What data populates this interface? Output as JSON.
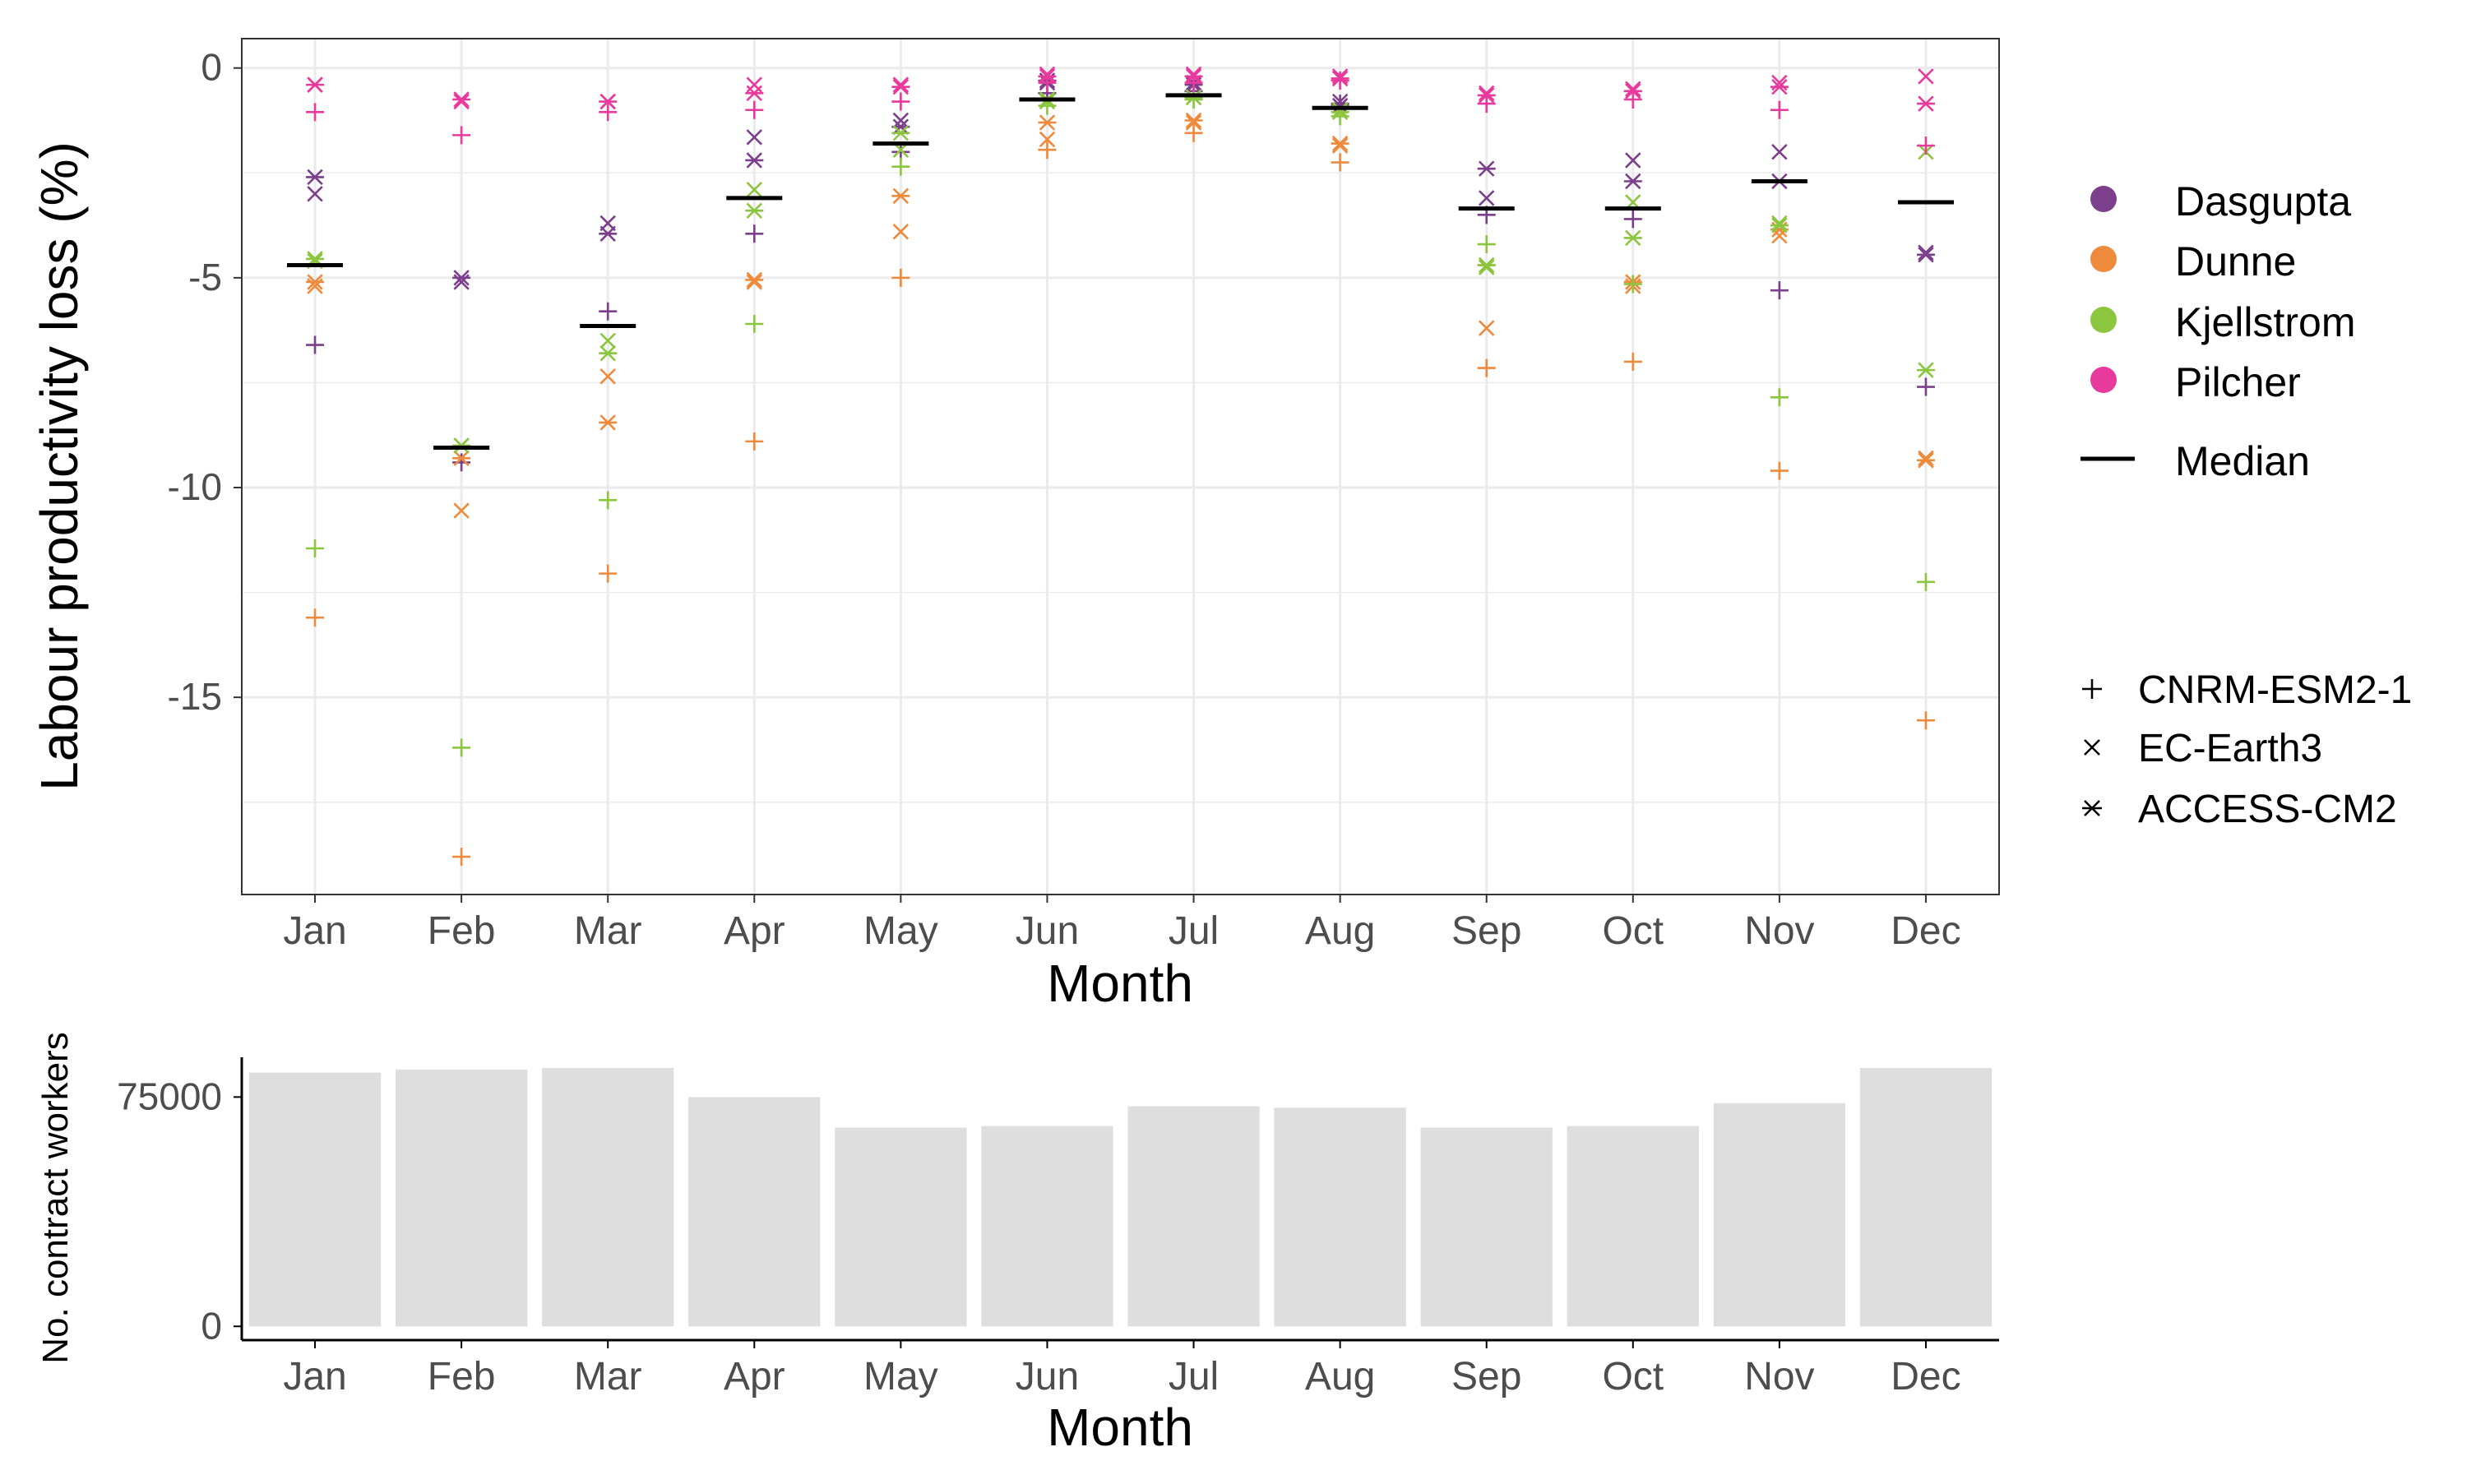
{
  "colors": {
    "Dasgupta": "#7b3f8c",
    "Dunne": "#ee8a3c",
    "Kjellstrom": "#8cc63f",
    "Pilcher": "#e8399c",
    "median": "#000000",
    "bar": "#dedede",
    "grid": "#ebebeb"
  },
  "legend_methods": [
    "Dasgupta",
    "Dunne",
    "Kjellstrom",
    "Pilcher"
  ],
  "legend_median_label": "Median",
  "legend_models": [
    {
      "name": "CNRM-ESM2-1",
      "symbol": "+"
    },
    {
      "name": "EC-Earth3",
      "symbol": "×"
    },
    {
      "name": "ACCESS-CM2",
      "symbol": "✳"
    }
  ],
  "chart_data": [
    {
      "type": "scatter",
      "title": "",
      "xlabel": "Month",
      "ylabel": "Labour productivity loss (%)",
      "categories": [
        "Jan",
        "Feb",
        "Mar",
        "Apr",
        "May",
        "Jun",
        "Jul",
        "Aug",
        "Sep",
        "Oct",
        "Nov",
        "Dec"
      ],
      "ylim": [
        -19.7,
        0.7
      ],
      "yticks": [
        0,
        -5,
        -10,
        -15
      ],
      "ytick_labels": [
        "0",
        "-5",
        "-10",
        "-15"
      ],
      "grid": true,
      "models": [
        "CNRM-ESM2-1",
        "EC-Earth3",
        "ACCESS-CM2"
      ],
      "medians": [
        -4.7,
        -9.05,
        -6.15,
        -3.1,
        -1.8,
        -0.75,
        -0.65,
        -0.95,
        -3.35,
        -3.35,
        -2.7,
        -3.2
      ],
      "series": [
        {
          "name": "Dasgupta",
          "values": {
            "CNRM-ESM2-1": [
              -6.6,
              -9.4,
              -5.8,
              -3.95,
              -2.0,
              -0.6,
              -0.55,
              -0.85,
              -3.5,
              -3.6,
              -5.3,
              -7.6
            ],
            "EC-Earth3": [
              -3.0,
              -5.1,
              -3.7,
              -1.65,
              -1.25,
              -0.35,
              -0.35,
              -0.8,
              -3.1,
              -2.2,
              -2.0,
              -4.4
            ],
            "ACCESS-CM2": [
              -2.6,
              -5.0,
              -3.95,
              -2.2,
              -1.4,
              -0.3,
              -0.4,
              -0.9,
              -2.4,
              -2.7,
              -2.7,
              -4.45
            ]
          }
        },
        {
          "name": "Dunne",
          "values": {
            "CNRM-ESM2-1": [
              -13.1,
              -18.8,
              -12.05,
              -8.9,
              -5.0,
              -1.95,
              -1.55,
              -2.25,
              -7.15,
              -7.0,
              -9.6,
              -15.55
            ],
            "EC-Earth3": [
              -5.2,
              -10.55,
              -7.35,
              -5.1,
              -3.9,
              -1.7,
              -1.3,
              -1.85,
              -6.2,
              -5.2,
              -4.0,
              -9.3
            ],
            "ACCESS-CM2": [
              -5.1,
              -9.3,
              -8.45,
              -5.05,
              -3.05,
              -1.3,
              -1.25,
              -1.8,
              -4.7,
              -5.1,
              -3.85,
              -9.35
            ]
          }
        },
        {
          "name": "Kjellstrom",
          "values": {
            "CNRM-ESM2-1": [
              -11.45,
              -16.2,
              -10.3,
              -6.1,
              -2.35,
              -0.9,
              -0.75,
              -1.15,
              -4.2,
              -5.15,
              -7.85,
              -12.25
            ],
            "EC-Earth3": [
              -4.6,
              -9.0,
              -6.5,
              -2.9,
              -1.95,
              -0.8,
              -0.7,
              -1.0,
              -4.75,
              -3.2,
              -3.7,
              -2.0
            ],
            "ACCESS-CM2": [
              -4.55,
              -9.0,
              -6.8,
              -3.4,
              -1.55,
              -0.75,
              -0.7,
              -1.05,
              -4.7,
              -4.05,
              -3.75,
              -7.2
            ]
          }
        },
        {
          "name": "Pilcher",
          "values": {
            "CNRM-ESM2-1": [
              -1.05,
              -1.6,
              -1.05,
              -1.0,
              -0.8,
              -0.35,
              -0.35,
              -0.3,
              -0.85,
              -0.75,
              -1.0,
              -1.85
            ],
            "EC-Earth3": [
              -0.4,
              -0.8,
              -0.8,
              -0.4,
              -0.4,
              -0.15,
              -0.15,
              -0.2,
              -0.6,
              -0.5,
              -0.35,
              -0.2
            ],
            "ACCESS-CM2": [
              -0.4,
              -0.75,
              -0.8,
              -0.6,
              -0.45,
              -0.2,
              -0.2,
              -0.25,
              -0.65,
              -0.55,
              -0.45,
              -0.85
            ]
          }
        }
      ]
    },
    {
      "type": "bar",
      "title": "",
      "xlabel": "Month",
      "ylabel": "No. contract workers",
      "categories": [
        "Jan",
        "Feb",
        "Mar",
        "Apr",
        "May",
        "Jun",
        "Jul",
        "Aug",
        "Sep",
        "Oct",
        "Nov",
        "Dec"
      ],
      "values": [
        83000,
        84000,
        84500,
        75000,
        65000,
        65500,
        72000,
        71500,
        65000,
        65500,
        73000,
        84500
      ],
      "ylim": [
        -4500,
        88000
      ],
      "yticks": [
        0,
        75000
      ],
      "ytick_labels": [
        "0",
        "75000"
      ],
      "grid": false
    }
  ]
}
